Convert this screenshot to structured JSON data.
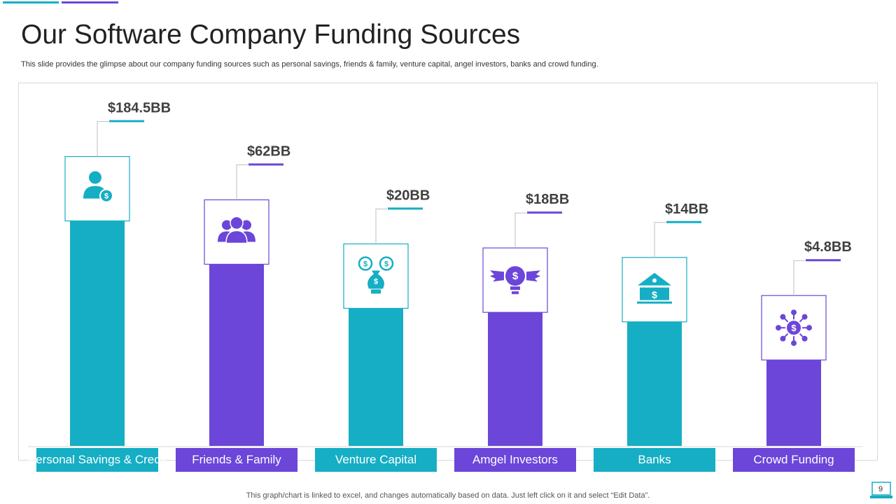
{
  "slide": {
    "title": "Our Software Company Funding Sources",
    "subtitle": "This slide provides the glimpse about our company funding sources such as personal savings, friends & family, venture  capital, angel investors, banks and crowd funding.",
    "footer_note": "This graph/chart is linked to excel,  and changes automatically based on data. Just left click on it and select “Edit Data”.",
    "page_number": "9"
  },
  "colors": {
    "teal": "#16aec4",
    "purple": "#6b46d9",
    "value_text": "#404040"
  },
  "chart_data": {
    "type": "bar",
    "title": "",
    "xlabel": "",
    "ylabel": "",
    "categories": [
      "Personal Savings & Credit",
      "Friends & Family",
      "Venture Capital",
      "Amgel Investors",
      "Banks",
      "Crowd Funding"
    ],
    "values": [
      184.5,
      62,
      20,
      18,
      14,
      4.8
    ],
    "value_labels": [
      "$184.5BB",
      "$62BB",
      "$20BB",
      "$18BB",
      "$14BB",
      "$4.8BB"
    ],
    "bar_colors": [
      "#16aec4",
      "#6b46d9",
      "#16aec4",
      "#6b46d9",
      "#16aec4",
      "#6b46d9"
    ],
    "icons": [
      "person-dollar-icon",
      "group-icon",
      "money-bag-icon",
      "winged-lightbulb-icon",
      "bank-icon",
      "network-dollar-icon"
    ],
    "grid": false,
    "legend": "none"
  }
}
